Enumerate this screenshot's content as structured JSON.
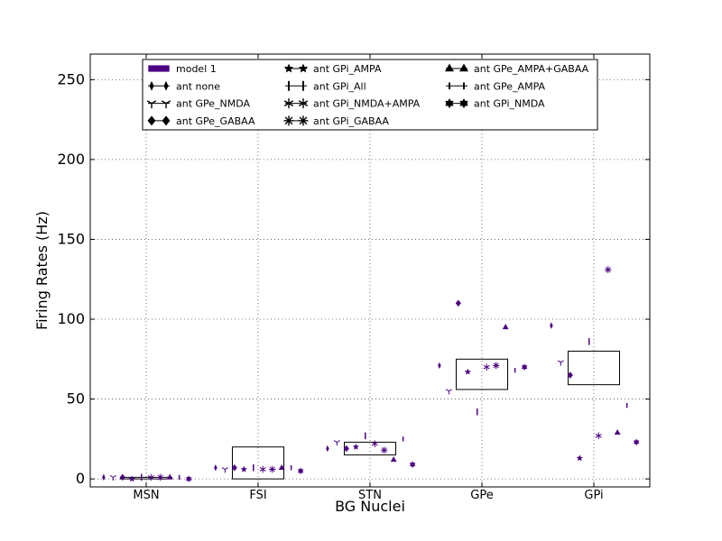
{
  "chart_data": {
    "type": "scatter",
    "xlabel": "BG Nuclei",
    "ylabel": "Firing Rates (Hz)",
    "categories": [
      "MSN",
      "FSI",
      "STN",
      "GPe",
      "GPi"
    ],
    "ylim": [
      -5,
      266
    ],
    "yticks": [
      0,
      50,
      100,
      150,
      200,
      250
    ],
    "grid": true,
    "legend_position": "top",
    "colors": {
      "series": "#4b0082",
      "box": "#000000",
      "grid": "#555555"
    },
    "model_ranges": [
      {
        "category": "MSN",
        "low": 0,
        "high": 1
      },
      {
        "category": "FSI",
        "low": 0,
        "high": 20
      },
      {
        "category": "STN",
        "low": 15,
        "high": 23
      },
      {
        "category": "GPe",
        "low": 56,
        "high": 75
      },
      {
        "category": "GPi",
        "low": 59,
        "high": 80
      }
    ],
    "legend": [
      {
        "label": "model 1",
        "marker": "patch"
      },
      {
        "label": "ant none",
        "marker": "thin_diamond"
      },
      {
        "label": "ant GPe_NMDA",
        "marker": "tri_down"
      },
      {
        "label": "ant GPe_GABAA",
        "marker": "diamond"
      },
      {
        "label": "ant GPi_AMPA",
        "marker": "star"
      },
      {
        "label": "ant GPi_All",
        "marker": "vline"
      },
      {
        "label": "ant GPi_NMDA+AMPA",
        "marker": "tri_star"
      },
      {
        "label": "ant GPi_GABAA",
        "marker": "x_star"
      },
      {
        "label": "ant GPe_AMPA+GABAA",
        "marker": "triangle_up"
      },
      {
        "label": "ant GPe_AMPA",
        "marker": "vline_short"
      },
      {
        "label": "ant GPi_NMDA",
        "marker": "hexagram"
      }
    ],
    "series": [
      {
        "name": "ant none",
        "marker": "thin_diamond",
        "points": [
          [
            0,
            1
          ],
          [
            1,
            7
          ],
          [
            2,
            19
          ],
          [
            3,
            71
          ],
          [
            4,
            96
          ]
        ]
      },
      {
        "name": "ant GPe_NMDA",
        "marker": "tri_down",
        "points": [
          [
            0,
            1
          ],
          [
            1,
            6
          ],
          [
            2,
            23
          ],
          [
            3,
            55
          ],
          [
            4,
            73
          ]
        ]
      },
      {
        "name": "ant GPe_GABAA",
        "marker": "diamond",
        "points": [
          [
            0,
            1
          ],
          [
            1,
            7
          ],
          [
            2,
            19
          ],
          [
            3,
            110
          ],
          [
            4,
            65
          ]
        ]
      },
      {
        "name": "ant GPi_AMPA",
        "marker": "star",
        "points": [
          [
            0,
            0
          ],
          [
            1,
            6
          ],
          [
            2,
            20
          ],
          [
            3,
            67
          ],
          [
            4,
            13
          ]
        ]
      },
      {
        "name": "ant GPi_All",
        "marker": "vline",
        "points": [
          [
            0,
            1
          ],
          [
            1,
            7
          ],
          [
            2,
            27
          ],
          [
            3,
            42
          ],
          [
            4,
            86
          ]
        ]
      },
      {
        "name": "ant GPi_NMDA+AMPA",
        "marker": "tri_star",
        "points": [
          [
            0,
            1
          ],
          [
            1,
            6
          ],
          [
            2,
            22
          ],
          [
            3,
            70
          ],
          [
            4,
            27
          ]
        ]
      },
      {
        "name": "ant GPi_GABAA",
        "marker": "x_star",
        "points": [
          [
            0,
            1
          ],
          [
            1,
            6
          ],
          [
            2,
            18
          ],
          [
            3,
            71
          ],
          [
            4,
            131
          ]
        ]
      },
      {
        "name": "ant GPe_AMPA+GABAA",
        "marker": "triangle_up",
        "points": [
          [
            0,
            1
          ],
          [
            1,
            7
          ],
          [
            2,
            12
          ],
          [
            3,
            95
          ],
          [
            4,
            29
          ]
        ]
      },
      {
        "name": "ant GPe_AMPA",
        "marker": "vline_short",
        "points": [
          [
            0,
            1
          ],
          [
            1,
            7
          ],
          [
            2,
            25
          ],
          [
            3,
            68
          ],
          [
            4,
            46
          ]
        ]
      },
      {
        "name": "ant GPi_NMDA",
        "marker": "hexagram",
        "points": [
          [
            0,
            0
          ],
          [
            1,
            5
          ],
          [
            2,
            9
          ],
          [
            3,
            70
          ],
          [
            4,
            23
          ]
        ]
      }
    ]
  }
}
